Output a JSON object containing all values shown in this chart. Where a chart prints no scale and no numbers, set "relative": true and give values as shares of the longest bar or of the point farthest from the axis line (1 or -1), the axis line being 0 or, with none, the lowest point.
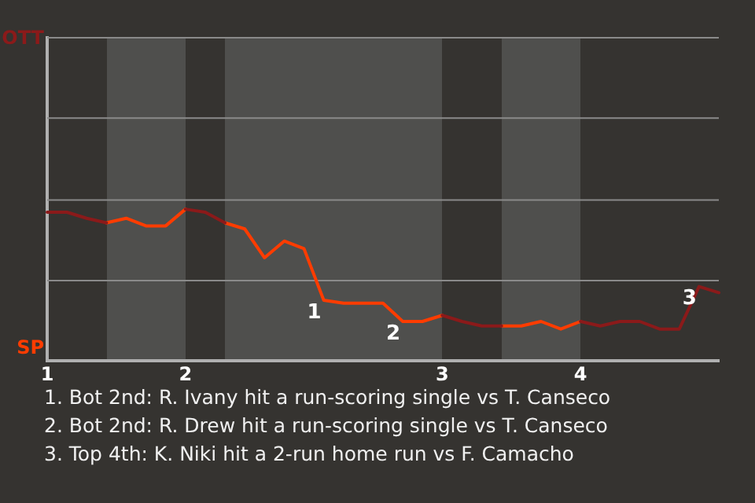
{
  "chart_data": {
    "type": "line",
    "categories": [
      "1",
      null,
      null,
      null,
      null,
      null,
      null,
      "2",
      null,
      null,
      null,
      null,
      null,
      null,
      null,
      null,
      null,
      null,
      null,
      null,
      "3",
      null,
      null,
      null,
      null,
      null,
      null,
      "4",
      null,
      null,
      null,
      null,
      null,
      null,
      null
    ],
    "series": [
      {
        "color": "#8b1a1a",
        "values": [
          0.98,
          0.98,
          0.94,
          0.91,
          null,
          null,
          null,
          1.0,
          0.98,
          0.91,
          null,
          null,
          null,
          null,
          null,
          null,
          null,
          null,
          null,
          null,
          0.3,
          0.26,
          0.23,
          0.23,
          null,
          null,
          null,
          0.26,
          0.23,
          0.26,
          0.26,
          0.21,
          0.21,
          0.49,
          0.45
        ]
      },
      {
        "color": "#ff3c00",
        "values": [
          null,
          null,
          null,
          0.91,
          0.94,
          0.89,
          0.89,
          1.0,
          null,
          0.91,
          0.87,
          0.68,
          0.79,
          0.74,
          0.4,
          0.38,
          0.38,
          0.38,
          0.26,
          0.26,
          0.3,
          null,
          null,
          0.23,
          0.23,
          0.26,
          0.21,
          0.26,
          null,
          null,
          null,
          null,
          null,
          null,
          null
        ]
      }
    ],
    "relative": true,
    "ref_lines": [
      {
        "axis": "y",
        "value": 0.53,
        "color": "#8a8a8a"
      },
      {
        "axis": "y",
        "value": 1.06,
        "color": "#8a8a8a"
      },
      {
        "axis": "y",
        "value": 1.6,
        "color": "#8a8a8a"
      },
      {
        "axis": "y",
        "value": 2.13,
        "color": "#8a8a8a"
      }
    ],
    "annotations": [
      "OTT",
      "SP",
      "1. Bot 2nd: R. Ivany hit a run-scoring single vs T. Canseco",
      "2. Bot 2nd: R. Drew hit a run-scoring single vs T. Canseco",
      "3. Top 4th: K. Niki hit a 2-run home run vs F. Camacho",
      {
        "text": "1",
        "y": 0.4
      },
      {
        "text": "2",
        "y": 0.26
      },
      {
        "text": "3",
        "y": 0.49
      }
    ],
    "legend": false,
    "marker": "none",
    "line_style": "solid"
  }
}
